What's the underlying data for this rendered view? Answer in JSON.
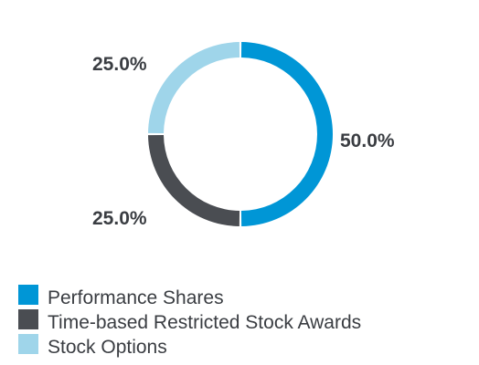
{
  "chart_data": {
    "type": "pie",
    "style": "donut",
    "categories": [
      "Performance Shares",
      "Time-based Restricted Stock Awards",
      "Stock Options"
    ],
    "values": [
      50.0,
      25.0,
      25.0
    ],
    "data_labels": [
      "50.0%",
      "25.0%",
      "25.0%"
    ],
    "colors": [
      "#0096d6",
      "#4a4d52",
      "#9fd5ea"
    ],
    "label_color": "#3a3d42",
    "legend_text_color": "#3a3d42",
    "legend_position": "bottom-left"
  }
}
